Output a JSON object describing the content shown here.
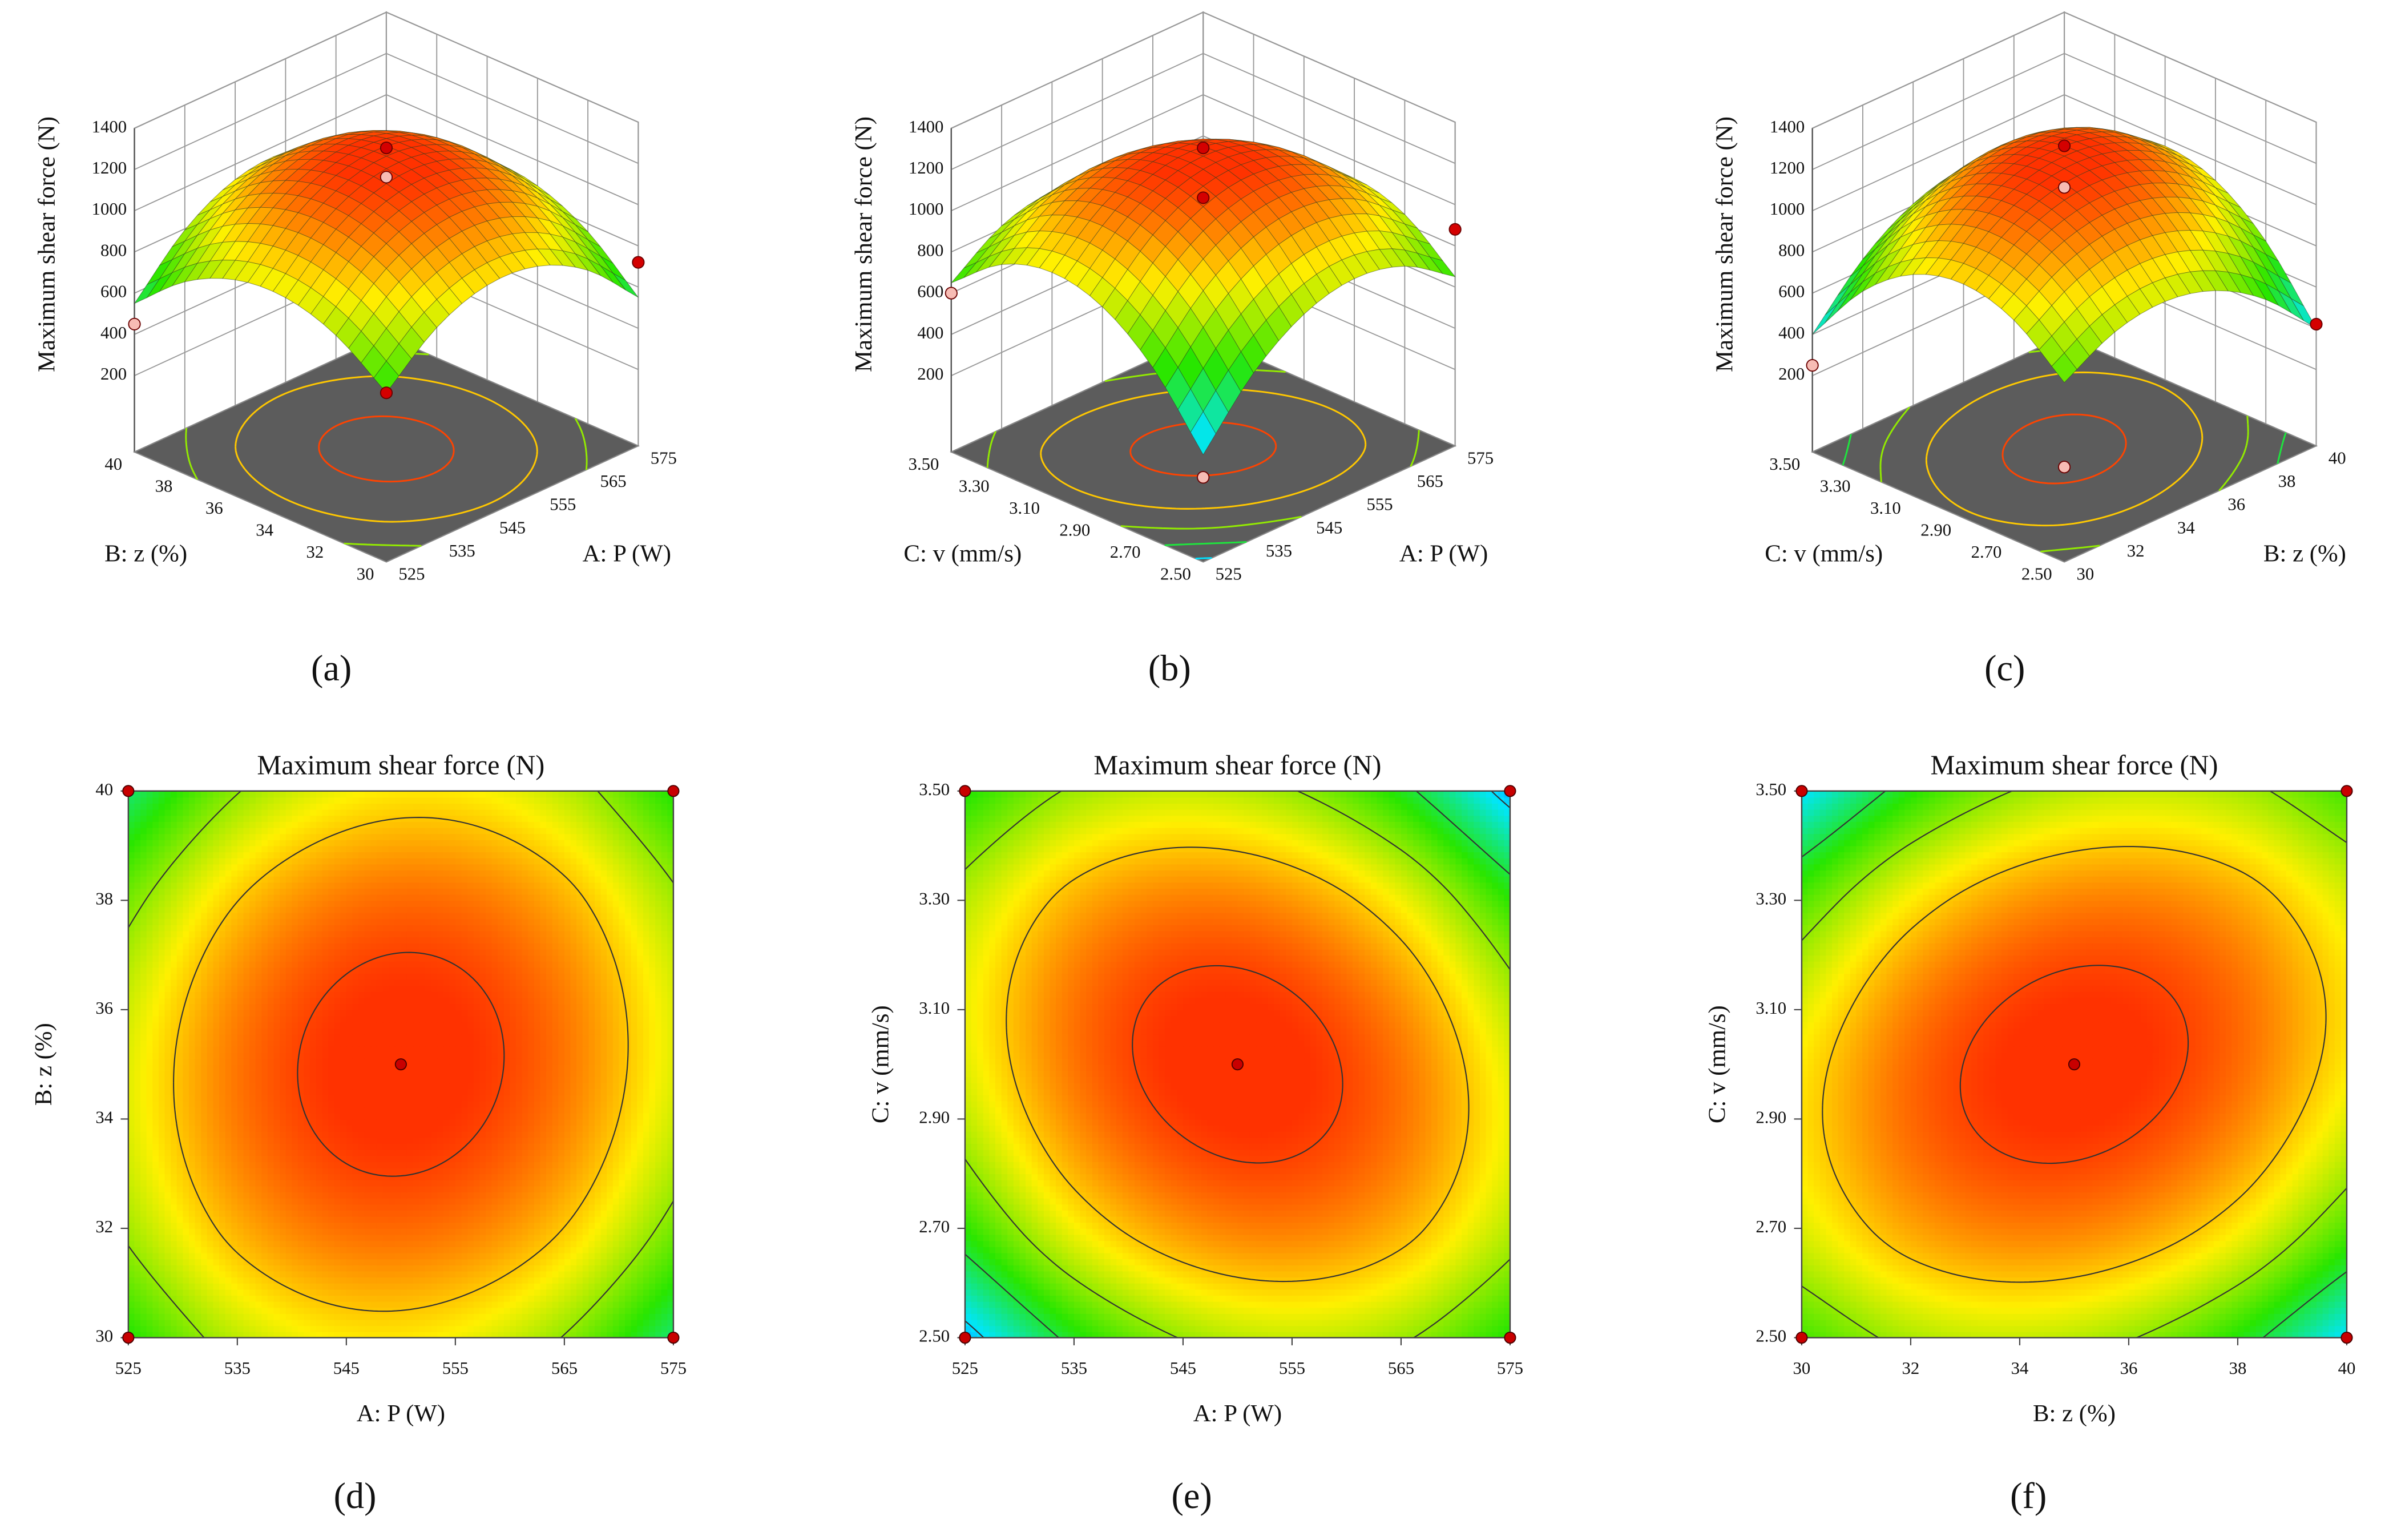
{
  "chart_data": [
    {
      "type": "surface",
      "caption": "(a)",
      "xlabel": "A: P (W)",
      "ylabel": "B: z (%)",
      "zlabel": "Maximum shear force (N)",
      "xlim": [
        525,
        575
      ],
      "xticks": [
        525,
        535,
        545,
        555,
        565,
        575
      ],
      "ylim": [
        30,
        40
      ],
      "yticks": [
        30,
        32,
        34,
        36,
        38,
        40
      ],
      "zlim": [
        200,
        1400
      ],
      "zticks": [
        200,
        400,
        600,
        800,
        1000,
        1200,
        1400
      ],
      "grid": true,
      "z": [
        [
          650,
          854,
          946,
          926,
          794,
          550
        ],
        [
          822,
          1034,
          1134,
          1122,
          998,
          762
        ],
        [
          898,
          1118,
          1226,
          1222,
          1106,
          878
        ],
        [
          878,
          1106,
          1222,
          1226,
          1118,
          898
        ],
        [
          762,
          998,
          1122,
          1134,
          1034,
          822
        ],
        [
          550,
          794,
          926,
          946,
          854,
          650
        ]
      ],
      "contour_levels": [
        800,
        1000,
        1200
      ],
      "points": {
        "x": [
          525,
          525,
          575,
          575,
          550
        ],
        "y": [
          30,
          40,
          30,
          40,
          35
        ],
        "z": [
          650,
          450,
          720,
          600,
          1290
        ]
      }
    },
    {
      "type": "surface",
      "caption": "(b)",
      "xlabel": "A: P (W)",
      "ylabel": "C: v (mm/s)",
      "zlabel": "Maximum shear force (N)",
      "xlim": [
        525,
        575
      ],
      "xticks": [
        525,
        535,
        545,
        555,
        565,
        575
      ],
      "ylim": [
        2.5,
        3.5
      ],
      "yticks": [
        {
          "value": 2.5,
          "label": "2.50"
        },
        {
          "value": 2.7,
          "label": "2.70"
        },
        {
          "value": 2.9,
          "label": "2.90"
        },
        {
          "value": 3.1,
          "label": "3.10"
        },
        {
          "value": 3.3,
          "label": "3.30"
        },
        {
          "value": 3.5,
          "label": "3.50"
        }
      ],
      "zlim": [
        200,
        1400
      ],
      "zticks": [
        200,
        400,
        600,
        800,
        1000,
        1200,
        1400
      ],
      "grid": true,
      "z": [
        [
          350,
          634,
          806,
          866,
          814,
          650
        ],
        [
          666,
          926,
          1074,
          1110,
          1034,
          846
        ],
        [
          854,
          1090,
          1214,
          1226,
          1126,
          914
        ],
        [
          914,
          1126,
          1226,
          1214,
          1090,
          854
        ],
        [
          846,
          1034,
          1110,
          1074,
          926,
          666
        ],
        [
          650,
          814,
          866,
          806,
          634,
          350
        ]
      ],
      "contour_levels": [
        400,
        600,
        800,
        1000,
        1200
      ],
      "points": {
        "x": [
          525,
          525,
          575,
          575,
          550
        ],
        "y": [
          2.5,
          3.5,
          2.5,
          3.5,
          3.0
        ],
        "z": [
          240,
          600,
          880,
          500,
          1290
        ]
      }
    },
    {
      "type": "surface",
      "caption": "(c)",
      "xlabel": "B: z (%)",
      "ylabel": "C: v (mm/s)",
      "zlabel": "Maximum shear force (N)",
      "xlim": [
        30,
        40
      ],
      "xticks": [
        30,
        32,
        34,
        36,
        38,
        40
      ],
      "ylim": [
        2.5,
        3.5
      ],
      "yticks": [
        {
          "value": 2.5,
          "label": "2.50"
        },
        {
          "value": 2.7,
          "label": "2.70"
        },
        {
          "value": 2.9,
          "label": "2.90"
        },
        {
          "value": 3.1,
          "label": "3.10"
        },
        {
          "value": 3.3,
          "label": "3.30"
        },
        {
          "value": 3.5,
          "label": "3.50"
        }
      ],
      "zlim": [
        200,
        1400
      ],
      "zticks": [
        200,
        400,
        600,
        800,
        1000,
        1200,
        1400
      ],
      "grid": true,
      "z": [
        [
          700,
          832,
          868,
          808,
          652,
          400
        ],
        [
          896,
          1052,
          1112,
          1076,
          944,
          716
        ],
        [
          964,
          1144,
          1228,
          1216,
          1108,
          904
        ],
        [
          904,
          1108,
          1216,
          1228,
          1144,
          964
        ],
        [
          716,
          944,
          1076,
          1112,
          1052,
          896
        ],
        [
          400,
          652,
          808,
          868,
          832,
          700
        ]
      ],
      "contour_levels": [
        400,
        600,
        800,
        1000,
        1200
      ],
      "points": {
        "x": [
          30,
          30,
          40,
          40,
          35
        ],
        "y": [
          2.5,
          3.5,
          2.5,
          3.5,
          3.0
        ],
        "z": [
          290,
          250,
          420,
          550,
          1300
        ]
      }
    },
    {
      "type": "contour",
      "caption": "(d)",
      "title": "Maximum shear force (N)",
      "xlabel": "A: P (W)",
      "ylabel": "B: z (%)",
      "xlim": [
        525,
        575
      ],
      "xticks": [
        525,
        535,
        545,
        555,
        565,
        575
      ],
      "ylim": [
        30,
        40
      ],
      "yticks": [
        30,
        32,
        34,
        36,
        38,
        40
      ],
      "zlim": [
        200,
        1400
      ],
      "z": [
        [
          650,
          854,
          946,
          926,
          794,
          550
        ],
        [
          822,
          1034,
          1134,
          1122,
          998,
          762
        ],
        [
          898,
          1118,
          1226,
          1222,
          1106,
          878
        ],
        [
          878,
          1106,
          1222,
          1226,
          1118,
          898
        ],
        [
          762,
          998,
          1122,
          1134,
          1034,
          822
        ],
        [
          550,
          794,
          926,
          946,
          854,
          650
        ]
      ],
      "contour_levels": [
        800,
        1000,
        1200
      ],
      "points": {
        "x": [
          525,
          525,
          575,
          575,
          550
        ],
        "y": [
          30,
          40,
          30,
          40,
          35
        ]
      }
    },
    {
      "type": "contour",
      "caption": "(e)",
      "title": "Maximum shear force (N)",
      "xlabel": "A: P (W)",
      "ylabel": "C: v (mm/s)",
      "xlim": [
        525,
        575
      ],
      "xticks": [
        525,
        535,
        545,
        555,
        565,
        575
      ],
      "ylim": [
        2.5,
        3.5
      ],
      "yticks": [
        {
          "value": 2.5,
          "label": "2.50"
        },
        {
          "value": 2.7,
          "label": "2.70"
        },
        {
          "value": 2.9,
          "label": "2.90"
        },
        {
          "value": 3.1,
          "label": "3.10"
        },
        {
          "value": 3.3,
          "label": "3.30"
        },
        {
          "value": 3.5,
          "label": "3.50"
        }
      ],
      "zlim": [
        200,
        1400
      ],
      "z": [
        [
          350,
          634,
          806,
          866,
          814,
          650
        ],
        [
          666,
          926,
          1074,
          1110,
          1034,
          846
        ],
        [
          854,
          1090,
          1214,
          1226,
          1126,
          914
        ],
        [
          914,
          1126,
          1226,
          1214,
          1090,
          854
        ],
        [
          846,
          1034,
          1110,
          1074,
          926,
          666
        ],
        [
          650,
          814,
          866,
          806,
          634,
          350
        ]
      ],
      "contour_levels": [
        400,
        600,
        800,
        1000,
        1200
      ],
      "points": {
        "x": [
          525,
          525,
          575,
          575,
          550
        ],
        "y": [
          2.5,
          3.5,
          2.5,
          3.5,
          3.0
        ]
      }
    },
    {
      "type": "contour",
      "caption": "(f)",
      "title": "Maximum shear force (N)",
      "xlabel": "B: z (%)",
      "ylabel": "C: v (mm/s)",
      "xlim": [
        30,
        40
      ],
      "xticks": [
        30,
        32,
        34,
        36,
        38,
        40
      ],
      "ylim": [
        2.5,
        3.5
      ],
      "yticks": [
        {
          "value": 2.5,
          "label": "2.50"
        },
        {
          "value": 2.7,
          "label": "2.70"
        },
        {
          "value": 2.9,
          "label": "2.90"
        },
        {
          "value": 3.1,
          "label": "3.10"
        },
        {
          "value": 3.3,
          "label": "3.30"
        },
        {
          "value": 3.5,
          "label": "3.50"
        }
      ],
      "zlim": [
        200,
        1400
      ],
      "z": [
        [
          700,
          832,
          868,
          808,
          652,
          400
        ],
        [
          896,
          1052,
          1112,
          1076,
          944,
          716
        ],
        [
          964,
          1144,
          1228,
          1216,
          1108,
          904
        ],
        [
          904,
          1108,
          1216,
          1228,
          1144,
          964
        ],
        [
          716,
          944,
          1076,
          1112,
          1052,
          896
        ],
        [
          400,
          652,
          808,
          868,
          832,
          700
        ]
      ],
      "contour_levels": [
        400,
        600,
        800,
        1000,
        1200
      ],
      "points": {
        "x": [
          30,
          30,
          40,
          40,
          35
        ],
        "y": [
          2.5,
          3.5,
          2.5,
          3.5,
          3.0
        ]
      }
    }
  ]
}
